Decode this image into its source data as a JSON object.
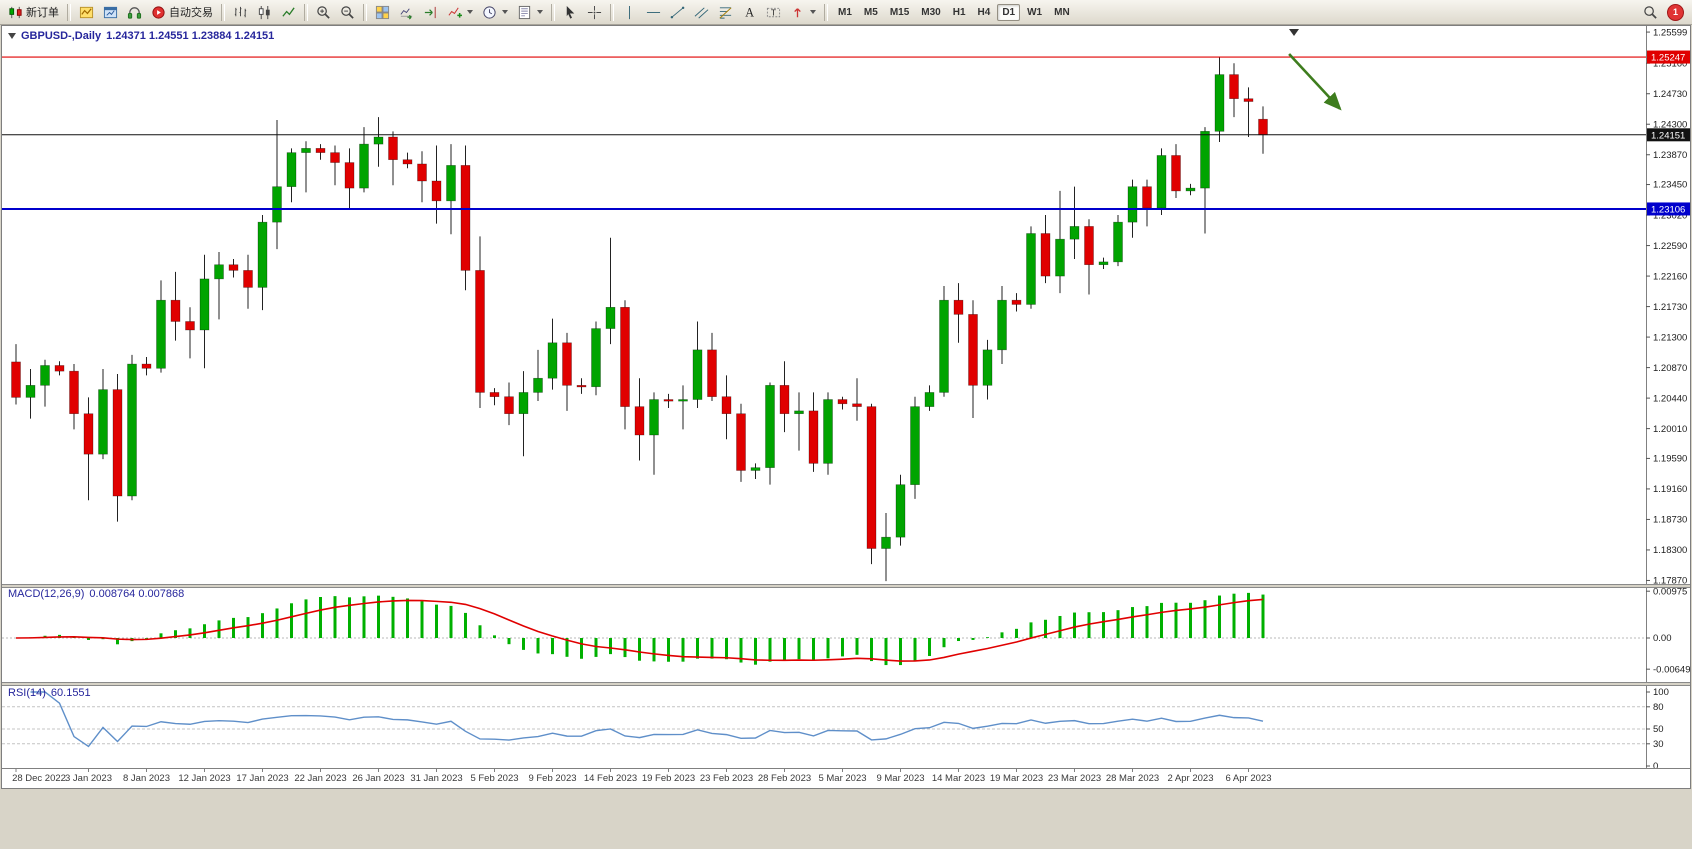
{
  "toolbar": {
    "new_order_label": "新订单",
    "auto_trading_label": "自动交易",
    "timeframes": [
      "M1",
      "M5",
      "M15",
      "M30",
      "H1",
      "H4",
      "D1",
      "W1",
      "MN"
    ],
    "active_timeframe": "D1",
    "notification_badge": "1",
    "icon_names": [
      "new-order-icon",
      "new-chart-icon",
      "profiles-icon",
      "market-sounds-icon",
      "auto-trading-icon",
      "bar-chart-icon",
      "candlestick-chart-icon",
      "line-chart-icon",
      "zoom-in-icon",
      "zoom-out-icon",
      "tile-windows-icon",
      "auto-scroll-icon",
      "chart-shift-icon",
      "indicators-icon",
      "periods-icon",
      "templates-icon",
      "cursor-icon",
      "crosshair-icon",
      "vertical-line-icon",
      "horizontal-line-icon",
      "trendline-icon",
      "channel-icon",
      "fibonacci-icon",
      "text-icon",
      "label-icon",
      "arrows-tool-icon",
      "search-icon",
      "notification-badge"
    ]
  },
  "chart": {
    "symbol_period": "GBPUSD-,Daily",
    "ohlc_values": "1.24371 1.24551 1.23884 1.24151"
  },
  "chart_data": {
    "type": "candlestick",
    "symbol": "GBPUSD-",
    "timeframe": "Daily",
    "title": "GBPUSD-,Daily",
    "grid": false,
    "ylim": [
      1.1782,
      1.256
    ],
    "dates": [
      "2022.12.28",
      "2022.12.29",
      "2022.12.30",
      "2023.01.01",
      "2023.01.02",
      "2023.01.03",
      "2023.01.04",
      "2023.01.05",
      "2023.01.06",
      "2023.01.08",
      "2023.01.09",
      "2023.01.10",
      "2023.01.11",
      "2023.01.12",
      "2023.01.13",
      "2023.01.15",
      "2023.01.16",
      "2023.01.17",
      "2023.01.18",
      "2023.01.19",
      "2023.01.20",
      "2023.01.22",
      "2023.01.23",
      "2023.01.24",
      "2023.01.25",
      "2023.01.26",
      "2023.01.27",
      "2023.01.29",
      "2023.01.30",
      "2023.01.31",
      "2023.02.01",
      "2023.02.02",
      "2023.02.03",
      "2023.02.05",
      "2023.02.06",
      "2023.02.07",
      "2023.02.08",
      "2023.02.09",
      "2023.02.10",
      "2023.02.12",
      "2023.02.13",
      "2023.02.14",
      "2023.02.15",
      "2023.02.16",
      "2023.02.17",
      "2023.02.19",
      "2023.02.20",
      "2023.02.21",
      "2023.02.22",
      "2023.02.23",
      "2023.02.24",
      "2023.02.26",
      "2023.02.27",
      "2023.02.28",
      "2023.03.01",
      "2023.03.02",
      "2023.03.03",
      "2023.03.05",
      "2023.03.06",
      "2023.03.07",
      "2023.03.08",
      "2023.03.09",
      "2023.03.10",
      "2023.03.12",
      "2023.03.13",
      "2023.03.14",
      "2023.03.15",
      "2023.03.16",
      "2023.03.17",
      "2023.03.19",
      "2023.03.20",
      "2023.03.21",
      "2023.03.22",
      "2023.03.23",
      "2023.03.24",
      "2023.03.26",
      "2023.03.27",
      "2023.03.28",
      "2023.03.29",
      "2023.03.30",
      "2023.03.31",
      "2023.04.02",
      "2023.04.03",
      "2023.04.04",
      "2023.04.05",
      "2023.04.06",
      "2023.04.07"
    ],
    "ohlc": [
      [
        1.2095,
        1.212,
        1.2035,
        1.2045
      ],
      [
        1.2045,
        1.2085,
        1.2015,
        1.2062
      ],
      [
        1.2062,
        1.2098,
        1.2032,
        1.209
      ],
      [
        1.209,
        1.2096,
        1.2076,
        1.2082
      ],
      [
        1.2082,
        1.2092,
        1.2,
        1.2022
      ],
      [
        1.2022,
        1.2045,
        1.19,
        1.1965
      ],
      [
        1.1965,
        1.2085,
        1.1958,
        1.2056
      ],
      [
        1.2056,
        1.2078,
        1.187,
        1.1906
      ],
      [
        1.1906,
        1.2105,
        1.19,
        1.2092
      ],
      [
        1.2092,
        1.2102,
        1.2076,
        1.2086
      ],
      [
        1.2086,
        1.221,
        1.208,
        1.2182
      ],
      [
        1.2182,
        1.2222,
        1.2125,
        1.2152
      ],
      [
        1.2152,
        1.2172,
        1.21,
        1.214
      ],
      [
        1.214,
        1.2246,
        1.2086,
        1.2212
      ],
      [
        1.2212,
        1.225,
        1.2155,
        1.2232
      ],
      [
        1.2232,
        1.224,
        1.2214,
        1.2224
      ],
      [
        1.2224,
        1.2246,
        1.217,
        1.22
      ],
      [
        1.22,
        1.2302,
        1.2168,
        1.2292
      ],
      [
        1.2292,
        1.2436,
        1.2254,
        1.2342
      ],
      [
        1.2342,
        1.2396,
        1.232,
        1.239
      ],
      [
        1.239,
        1.2406,
        1.2334,
        1.2396
      ],
      [
        1.2396,
        1.2402,
        1.238,
        1.239
      ],
      [
        1.239,
        1.24,
        1.2344,
        1.2376
      ],
      [
        1.2376,
        1.2396,
        1.231,
        1.234
      ],
      [
        1.234,
        1.2426,
        1.2334,
        1.2402
      ],
      [
        1.2402,
        1.244,
        1.237,
        1.2412
      ],
      [
        1.2412,
        1.242,
        1.2344,
        1.238
      ],
      [
        1.238,
        1.239,
        1.2368,
        1.2374
      ],
      [
        1.2374,
        1.2392,
        1.232,
        1.235
      ],
      [
        1.235,
        1.24,
        1.229,
        1.2322
      ],
      [
        1.2322,
        1.2402,
        1.2275,
        1.2372
      ],
      [
        1.2372,
        1.24,
        1.2196,
        1.2224
      ],
      [
        1.2224,
        1.2272,
        1.203,
        1.2052
      ],
      [
        1.2052,
        1.2058,
        1.2034,
        1.2046
      ],
      [
        1.2046,
        1.2066,
        1.2006,
        1.2022
      ],
      [
        1.2022,
        1.2082,
        1.1962,
        1.2052
      ],
      [
        1.2052,
        1.2112,
        1.204,
        1.2072
      ],
      [
        1.2072,
        1.2156,
        1.2056,
        1.2122
      ],
      [
        1.2122,
        1.2136,
        1.2026,
        1.2062
      ],
      [
        1.2062,
        1.2072,
        1.205,
        1.206
      ],
      [
        1.206,
        1.2152,
        1.2048,
        1.2142
      ],
      [
        1.2142,
        1.227,
        1.212,
        1.2172
      ],
      [
        1.2172,
        1.2182,
        1.2,
        1.2032
      ],
      [
        1.2032,
        1.2072,
        1.1956,
        1.1992
      ],
      [
        1.1992,
        1.2052,
        1.1936,
        1.2042
      ],
      [
        1.2042,
        1.205,
        1.203,
        1.204
      ],
      [
        1.204,
        1.2062,
        1.2,
        1.2042
      ],
      [
        1.2042,
        1.2152,
        1.203,
        1.2112
      ],
      [
        1.2112,
        1.2136,
        1.204,
        1.2046
      ],
      [
        1.2046,
        1.2076,
        1.1986,
        1.2022
      ],
      [
        1.2022,
        1.2036,
        1.1926,
        1.1942
      ],
      [
        1.1942,
        1.1952,
        1.193,
        1.1946
      ],
      [
        1.1946,
        1.2066,
        1.1922,
        1.2062
      ],
      [
        1.2062,
        1.2096,
        1.1996,
        1.2022
      ],
      [
        1.2022,
        1.2052,
        1.197,
        1.2026
      ],
      [
        1.2026,
        1.2052,
        1.194,
        1.1952
      ],
      [
        1.1952,
        1.2052,
        1.1936,
        1.2042
      ],
      [
        1.2042,
        1.2046,
        1.2028,
        1.2036
      ],
      [
        1.2036,
        1.2072,
        1.2012,
        1.2032
      ],
      [
        1.2032,
        1.2036,
        1.181,
        1.1832
      ],
      [
        1.1832,
        1.1882,
        1.1786,
        1.1848
      ],
      [
        1.1848,
        1.1936,
        1.1836,
        1.1922
      ],
      [
        1.1922,
        1.2046,
        1.1902,
        1.2032
      ],
      [
        1.2032,
        1.2062,
        1.2026,
        1.2052
      ],
      [
        1.2052,
        1.2202,
        1.2046,
        1.2182
      ],
      [
        1.2182,
        1.2206,
        1.2122,
        1.2162
      ],
      [
        1.2162,
        1.2182,
        1.2016,
        1.2062
      ],
      [
        1.2062,
        1.2126,
        1.2042,
        1.2112
      ],
      [
        1.2112,
        1.2202,
        1.2092,
        1.2182
      ],
      [
        1.2182,
        1.2192,
        1.2166,
        1.2176
      ],
      [
        1.2176,
        1.2286,
        1.217,
        1.2276
      ],
      [
        1.2276,
        1.2302,
        1.2206,
        1.2216
      ],
      [
        1.2216,
        1.2336,
        1.2192,
        1.2268
      ],
      [
        1.2268,
        1.2342,
        1.224,
        1.2286
      ],
      [
        1.2286,
        1.2296,
        1.219,
        1.2232
      ],
      [
        1.2232,
        1.2242,
        1.2226,
        1.2236
      ],
      [
        1.2236,
        1.2302,
        1.223,
        1.2292
      ],
      [
        1.2292,
        1.2352,
        1.227,
        1.2342
      ],
      [
        1.2342,
        1.2352,
        1.2286,
        1.2312
      ],
      [
        1.2312,
        1.2396,
        1.2302,
        1.2386
      ],
      [
        1.2386,
        1.2402,
        1.2326,
        1.2336
      ],
      [
        1.2336,
        1.2346,
        1.233,
        1.234
      ],
      [
        1.234,
        1.2426,
        1.2276,
        1.242
      ],
      [
        1.242,
        1.2525,
        1.2405,
        1.25
      ],
      [
        1.25,
        1.2516,
        1.244,
        1.2466
      ],
      [
        1.2466,
        1.2482,
        1.2412,
        1.2462
      ],
      [
        1.24371,
        1.24551,
        1.23884,
        1.24151
      ]
    ],
    "x_tick_indices": [
      0,
      5,
      9,
      13,
      17,
      21,
      25,
      29,
      33,
      37,
      41,
      45,
      49,
      53,
      57,
      61,
      65,
      69,
      73,
      77,
      81,
      85
    ],
    "x_tick_labels": [
      "28 Dec 2022",
      "3 Jan 2023",
      "8 Jan 2023",
      "12 Jan 2023",
      "17 Jan 2023",
      "22 Jan 2023",
      "26 Jan 2023",
      "31 Jan 2023",
      "5 Feb 2023",
      "9 Feb 2023",
      "14 Feb 2023",
      "19 Feb 2023",
      "23 Feb 2023",
      "28 Feb 2023",
      "5 Mar 2023",
      "9 Mar 2023",
      "14 Mar 2023",
      "19 Mar 2023",
      "23 Mar 2023",
      "28 Mar 2023",
      "2 Apr 2023",
      "6 Apr 2023"
    ],
    "y_axis_ticks": [
      "1.25599",
      "1.25160",
      "1.24730",
      "1.24300",
      "1.23870",
      "1.23450",
      "1.23020",
      "1.22590",
      "1.22160",
      "1.21730",
      "1.21300",
      "1.20870",
      "1.20440",
      "1.20010",
      "1.19590",
      "1.19160",
      "1.18730",
      "1.18300",
      "1.17870"
    ],
    "price_lines": [
      {
        "name": "resistance-line",
        "value": 1.25247,
        "label": "1.25247",
        "color": "#e00000",
        "width": 1.2
      },
      {
        "name": "bid-price-line",
        "value": 1.24151,
        "label": "1.24151",
        "color": "#111111",
        "width": 1
      },
      {
        "name": "support-line",
        "value": 1.23106,
        "label": "1.23106",
        "color": "#0000cc",
        "width": 2
      }
    ],
    "annotation_arrow": {
      "from_index": 87.8,
      "from_price": 1.2529,
      "to_index": 91.3,
      "to_price": 1.2452,
      "color": "#3e7d1e"
    },
    "indicators": [
      {
        "name": "MACD",
        "label": "MACD(12,26,9)",
        "values_text": "0.008764 0.007868",
        "params": [
          12,
          26,
          9
        ],
        "y_ticks": [
          "0.00975",
          "0.00",
          "-0.006494"
        ]
      },
      {
        "name": "RSI",
        "label": "RSI(14)",
        "values_text": "60.1551",
        "period": 14,
        "levels": [
          80,
          50,
          30
        ],
        "y_ticks": [
          "100",
          "80",
          "50",
          "30",
          "0"
        ]
      }
    ],
    "colors": {
      "bull": "#00a400",
      "bear": "#e00000",
      "wick": "#222222",
      "macd_histogram": "#00b000",
      "macd_signal": "#e00000",
      "rsi_line": "#5f8fc9",
      "resistance": "#e00000",
      "support": "#0000cc",
      "current_price": "#111111"
    }
  }
}
